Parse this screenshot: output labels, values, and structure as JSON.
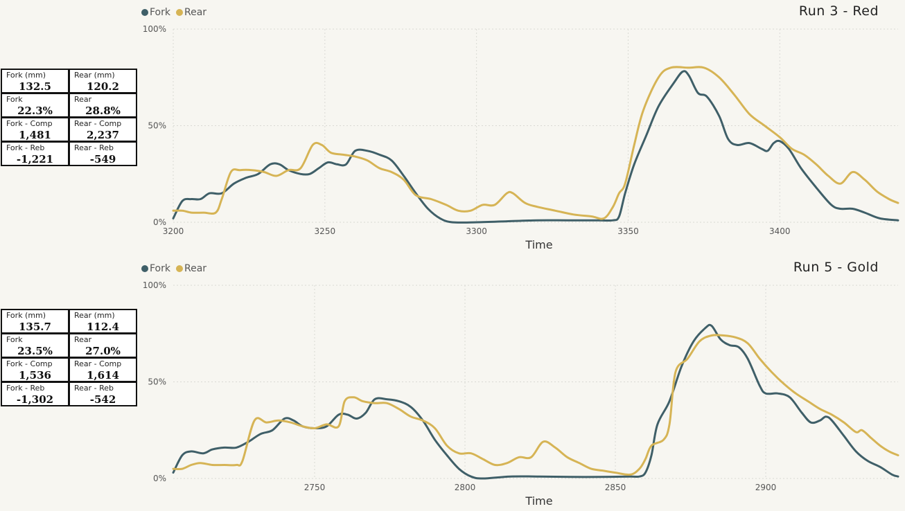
{
  "panels": [
    {
      "title": "Run 3 - Red",
      "legend": [
        {
          "name": "Fork",
          "color": "#3f5f68"
        },
        {
          "name": "Rear",
          "color": "#d6b455"
        }
      ],
      "stats": [
        {
          "label": "Fork (mm)",
          "value": "132.5"
        },
        {
          "label": "Rear (mm)",
          "value": "120.2"
        },
        {
          "label": "Fork",
          "value": "22.3%"
        },
        {
          "label": "Rear",
          "value": "28.8%"
        },
        {
          "label": "Fork - Comp",
          "value": "1,481"
        },
        {
          "label": "Rear - Comp",
          "value": "2,237"
        },
        {
          "label": "Fork - Reb",
          "value": "-1,221"
        },
        {
          "label": "Rear - Reb",
          "value": "-549"
        }
      ]
    },
    {
      "title": "Run 5 - Gold",
      "legend": [
        {
          "name": "Fork",
          "color": "#3f5f68"
        },
        {
          "name": "Rear",
          "color": "#d6b455"
        }
      ],
      "stats": [
        {
          "label": "Fork (mm)",
          "value": "135.7"
        },
        {
          "label": "Rear (mm)",
          "value": "112.4"
        },
        {
          "label": "Fork",
          "value": "23.5%"
        },
        {
          "label": "Rear",
          "value": "27.0%"
        },
        {
          "label": "Fork - Comp",
          "value": "1,536"
        },
        {
          "label": "Rear - Comp",
          "value": "1,614"
        },
        {
          "label": "Fork - Reb",
          "value": "-1,302"
        },
        {
          "label": "Rear - Reb",
          "value": "-542"
        }
      ]
    }
  ],
  "chart_data": [
    {
      "type": "line",
      "title": "Run 3 - Red",
      "xlabel": "Time",
      "ylabel": "",
      "xlim": [
        3200,
        3439
      ],
      "ylim": [
        0,
        100
      ],
      "xticks": [
        "3200",
        "3250",
        "3300",
        "3350",
        "3400"
      ],
      "yticks": [
        "0%",
        "50%",
        "100%"
      ],
      "grid": true,
      "legend_position": "top-left",
      "series": [
        {
          "name": "Fork",
          "color": "#3f5f68",
          "points": [
            [
              3200,
              2
            ],
            [
              3203,
              11
            ],
            [
              3206,
              12
            ],
            [
              3209,
              12
            ],
            [
              3212,
              15
            ],
            [
              3216,
              15
            ],
            [
              3220,
              20
            ],
            [
              3224,
              23
            ],
            [
              3228,
              25
            ],
            [
              3232,
              30
            ],
            [
              3235,
              30
            ],
            [
              3238,
              27
            ],
            [
              3242,
              25
            ],
            [
              3245,
              25
            ],
            [
              3248,
              28
            ],
            [
              3251,
              31
            ],
            [
              3254,
              30
            ],
            [
              3257,
              30
            ],
            [
              3260,
              37
            ],
            [
              3264,
              37
            ],
            [
              3268,
              35
            ],
            [
              3272,
              32
            ],
            [
              3276,
              24
            ],
            [
              3280,
              15
            ],
            [
              3284,
              7
            ],
            [
              3288,
              2
            ],
            [
              3292,
              0
            ],
            [
              3300,
              0
            ],
            [
              3310,
              0.5
            ],
            [
              3320,
              1
            ],
            [
              3330,
              1
            ],
            [
              3340,
              1
            ],
            [
              3345,
              1
            ],
            [
              3347,
              3
            ],
            [
              3349,
              15
            ],
            [
              3352,
              30
            ],
            [
              3356,
              45
            ],
            [
              3360,
              60
            ],
            [
              3365,
              72
            ],
            [
              3368,
              78
            ],
            [
              3370,
              76
            ],
            [
              3373,
              67
            ],
            [
              3376,
              65
            ],
            [
              3380,
              55
            ],
            [
              3383,
              43
            ],
            [
              3386,
              40
            ],
            [
              3390,
              41
            ],
            [
              3394,
              38
            ],
            [
              3396,
              37
            ],
            [
              3398,
              41
            ],
            [
              3400,
              42
            ],
            [
              3403,
              38
            ],
            [
              3407,
              28
            ],
            [
              3412,
              18
            ],
            [
              3417,
              9
            ],
            [
              3420,
              7
            ],
            [
              3424,
              7
            ],
            [
              3428,
              5
            ],
            [
              3433,
              2
            ],
            [
              3439,
              1
            ]
          ]
        },
        {
          "name": "Rear",
          "color": "#d6b455",
          "points": [
            [
              3200,
              6
            ],
            [
              3203,
              6
            ],
            [
              3206,
              5
            ],
            [
              3210,
              5
            ],
            [
              3214,
              5
            ],
            [
              3216,
              12
            ],
            [
              3219,
              26
            ],
            [
              3222,
              27
            ],
            [
              3226,
              27
            ],
            [
              3230,
              26
            ],
            [
              3234,
              24
            ],
            [
              3238,
              27
            ],
            [
              3242,
              28
            ],
            [
              3246,
              40
            ],
            [
              3249,
              40
            ],
            [
              3252,
              36
            ],
            [
              3256,
              35
            ],
            [
              3260,
              34
            ],
            [
              3264,
              32
            ],
            [
              3268,
              28
            ],
            [
              3272,
              26
            ],
            [
              3276,
              22
            ],
            [
              3280,
              14
            ],
            [
              3285,
              12
            ],
            [
              3290,
              9
            ],
            [
              3294,
              6
            ],
            [
              3298,
              6
            ],
            [
              3302,
              9
            ],
            [
              3306,
              9
            ],
            [
              3310,
              15
            ],
            [
              3312,
              15
            ],
            [
              3316,
              10
            ],
            [
              3320,
              8
            ],
            [
              3326,
              6
            ],
            [
              3332,
              4
            ],
            [
              3338,
              3
            ],
            [
              3342,
              2
            ],
            [
              3345,
              8
            ],
            [
              3347,
              15
            ],
            [
              3349,
              20
            ],
            [
              3352,
              40
            ],
            [
              3355,
              58
            ],
            [
              3360,
              75
            ],
            [
              3364,
              80
            ],
            [
              3370,
              80
            ],
            [
              3375,
              80
            ],
            [
              3380,
              75
            ],
            [
              3385,
              66
            ],
            [
              3390,
              56
            ],
            [
              3395,
              50
            ],
            [
              3400,
              44
            ],
            [
              3404,
              38
            ],
            [
              3408,
              35
            ],
            [
              3412,
              30
            ],
            [
              3416,
              24
            ],
            [
              3420,
              20
            ],
            [
              3424,
              26
            ],
            [
              3428,
              22
            ],
            [
              3432,
              16
            ],
            [
              3436,
              12
            ],
            [
              3439,
              10
            ]
          ]
        }
      ]
    },
    {
      "type": "line",
      "title": "Run 5 - Gold",
      "xlabel": "Time",
      "ylabel": "",
      "xlim": [
        2703,
        2944
      ],
      "ylim": [
        0,
        100
      ],
      "xticks": [
        "2750",
        "2800",
        "2850",
        "2900"
      ],
      "yticks": [
        "0%",
        "50%",
        "100%"
      ],
      "grid": true,
      "legend_position": "top-left",
      "series": [
        {
          "name": "Fork",
          "color": "#3f5f68",
          "points": [
            [
              2703,
              3
            ],
            [
              2706,
              12
            ],
            [
              2709,
              14
            ],
            [
              2713,
              13
            ],
            [
              2716,
              15
            ],
            [
              2720,
              16
            ],
            [
              2724,
              16
            ],
            [
              2728,
              19
            ],
            [
              2732,
              23
            ],
            [
              2736,
              25
            ],
            [
              2740,
              31
            ],
            [
              2743,
              30
            ],
            [
              2746,
              27
            ],
            [
              2750,
              26
            ],
            [
              2754,
              27
            ],
            [
              2758,
              33
            ],
            [
              2761,
              33
            ],
            [
              2764,
              31
            ],
            [
              2767,
              34
            ],
            [
              2770,
              41
            ],
            [
              2774,
              41
            ],
            [
              2778,
              40
            ],
            [
              2782,
              37
            ],
            [
              2786,
              30
            ],
            [
              2790,
              20
            ],
            [
              2794,
              12
            ],
            [
              2798,
              5
            ],
            [
              2802,
              1
            ],
            [
              2806,
              0
            ],
            [
              2815,
              1
            ],
            [
              2825,
              1
            ],
            [
              2835,
              0.8
            ],
            [
              2845,
              0.8
            ],
            [
              2855,
              1
            ],
            [
              2858,
              1
            ],
            [
              2860,
              3
            ],
            [
              2862,
              12
            ],
            [
              2864,
              28
            ],
            [
              2868,
              40
            ],
            [
              2872,
              58
            ],
            [
              2876,
              71
            ],
            [
              2880,
              78
            ],
            [
              2882,
              79
            ],
            [
              2885,
              72
            ],
            [
              2888,
              69
            ],
            [
              2891,
              68
            ],
            [
              2894,
              62
            ],
            [
              2898,
              48
            ],
            [
              2900,
              44
            ],
            [
              2904,
              44
            ],
            [
              2908,
              42
            ],
            [
              2912,
              34
            ],
            [
              2915,
              29
            ],
            [
              2918,
              30
            ],
            [
              2920,
              32
            ],
            [
              2922,
              30
            ],
            [
              2926,
              22
            ],
            [
              2930,
              14
            ],
            [
              2934,
              9
            ],
            [
              2938,
              6
            ],
            [
              2942,
              2
            ],
            [
              2944,
              1
            ]
          ]
        },
        {
          "name": "Rear",
          "color": "#d6b455",
          "points": [
            [
              2703,
              5
            ],
            [
              2706,
              5
            ],
            [
              2709,
              7
            ],
            [
              2712,
              8
            ],
            [
              2716,
              7
            ],
            [
              2720,
              7
            ],
            [
              2724,
              7
            ],
            [
              2726,
              9
            ],
            [
              2730,
              30
            ],
            [
              2734,
              29
            ],
            [
              2738,
              30
            ],
            [
              2742,
              29
            ],
            [
              2746,
              27
            ],
            [
              2750,
              26
            ],
            [
              2754,
              28
            ],
            [
              2758,
              27
            ],
            [
              2760,
              40
            ],
            [
              2763,
              42
            ],
            [
              2766,
              40
            ],
            [
              2770,
              39
            ],
            [
              2774,
              39
            ],
            [
              2778,
              36
            ],
            [
              2782,
              32
            ],
            [
              2786,
              30
            ],
            [
              2790,
              26
            ],
            [
              2794,
              17
            ],
            [
              2798,
              13
            ],
            [
              2802,
              13
            ],
            [
              2806,
              10
            ],
            [
              2810,
              7
            ],
            [
              2814,
              8
            ],
            [
              2818,
              11
            ],
            [
              2822,
              11
            ],
            [
              2826,
              19
            ],
            [
              2830,
              16
            ],
            [
              2834,
              11
            ],
            [
              2838,
              8
            ],
            [
              2842,
              5
            ],
            [
              2846,
              4
            ],
            [
              2850,
              3
            ],
            [
              2855,
              2
            ],
            [
              2858,
              5
            ],
            [
              2860,
              10
            ],
            [
              2862,
              17
            ],
            [
              2866,
              20
            ],
            [
              2868,
              28
            ],
            [
              2870,
              55
            ],
            [
              2874,
              62
            ],
            [
              2878,
              71
            ],
            [
              2882,
              74
            ],
            [
              2886,
              74
            ],
            [
              2890,
              73
            ],
            [
              2894,
              70
            ],
            [
              2898,
              62
            ],
            [
              2902,
              55
            ],
            [
              2906,
              49
            ],
            [
              2910,
              44
            ],
            [
              2914,
              40
            ],
            [
              2918,
              36
            ],
            [
              2922,
              33
            ],
            [
              2926,
              29
            ],
            [
              2930,
              24
            ],
            [
              2932,
              25
            ],
            [
              2935,
              21
            ],
            [
              2938,
              17
            ],
            [
              2941,
              14
            ],
            [
              2944,
              12
            ]
          ]
        }
      ]
    }
  ]
}
